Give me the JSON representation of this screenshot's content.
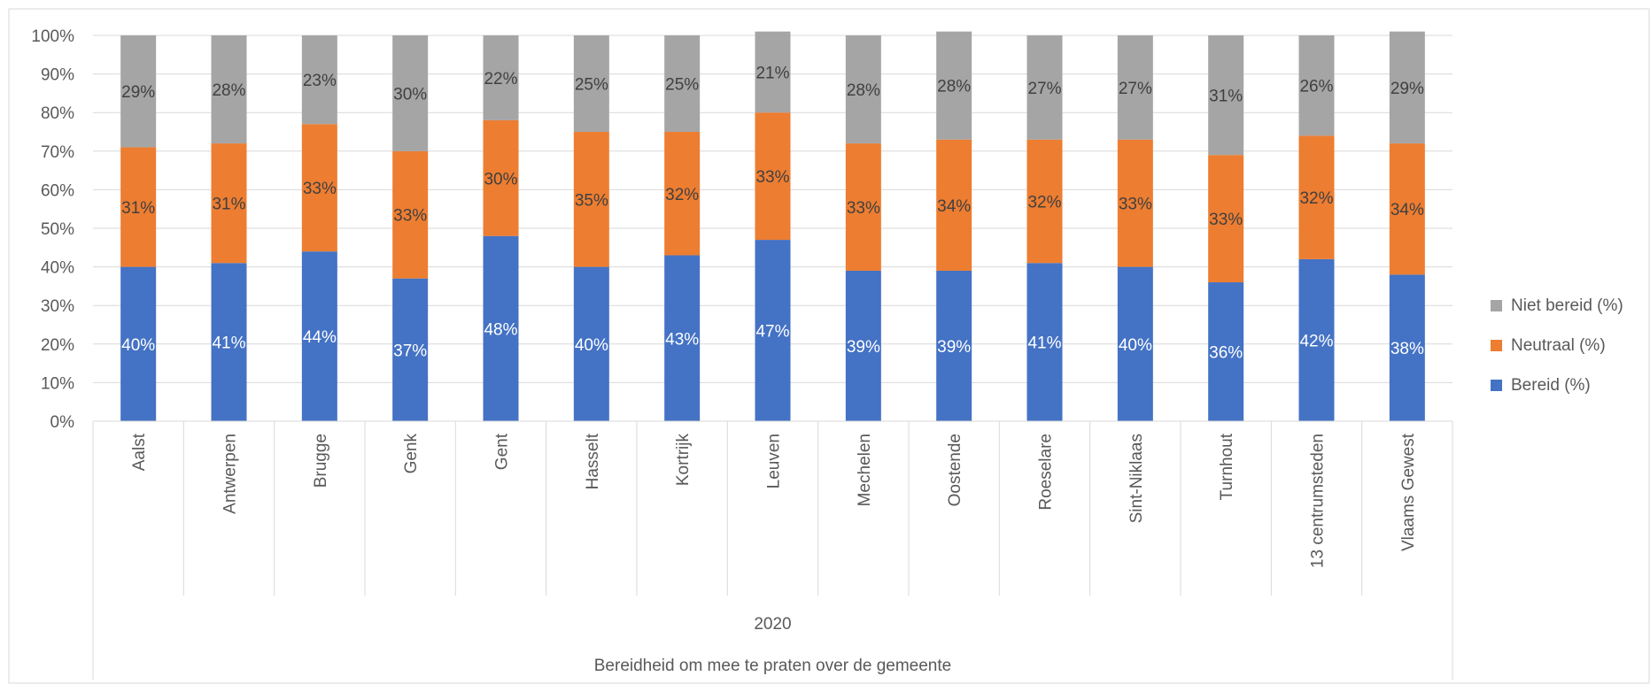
{
  "chart_data": {
    "type": "bar",
    "stacked": true,
    "percent_stacked": true,
    "categories": [
      "Aalst",
      "Antwerpen",
      "Brugge",
      "Genk",
      "Gent",
      "Hasselt",
      "Kortrijk",
      "Leuven",
      "Mechelen",
      "Oostende",
      "Roeselare",
      "Sint-Niklaas",
      "Turnhout",
      "13 centrumsteden",
      "Vlaams Gewest"
    ],
    "group_labels": [
      "2020",
      "Bereidheid om mee te praten over de gemeente"
    ],
    "series": [
      {
        "name": "Bereid (%)",
        "color": "#4472C4",
        "label_color": "#ffffff",
        "values": [
          40,
          41,
          44,
          37,
          48,
          40,
          43,
          47,
          39,
          39,
          41,
          40,
          36,
          42,
          38
        ]
      },
      {
        "name": "Neutraal (%)",
        "color": "#ED7D31",
        "label_color": "#404040",
        "values": [
          31,
          31,
          33,
          33,
          30,
          35,
          32,
          33,
          33,
          34,
          32,
          33,
          33,
          32,
          34
        ]
      },
      {
        "name": "Niet bereid (%)",
        "color": "#A5A5A5",
        "label_color": "#404040",
        "values": [
          29,
          28,
          23,
          30,
          22,
          25,
          25,
          21,
          28,
          28,
          27,
          27,
          31,
          26,
          29
        ]
      }
    ],
    "y_ticks": [
      "0%",
      "10%",
      "20%",
      "30%",
      "40%",
      "50%",
      "60%",
      "70%",
      "80%",
      "90%",
      "100%"
    ],
    "ylim": [
      0,
      100
    ],
    "grid": true,
    "legend_position": "right",
    "legend_order": [
      "Niet bereid (%)",
      "Neutraal (%)",
      "Bereid (%)"
    ]
  }
}
